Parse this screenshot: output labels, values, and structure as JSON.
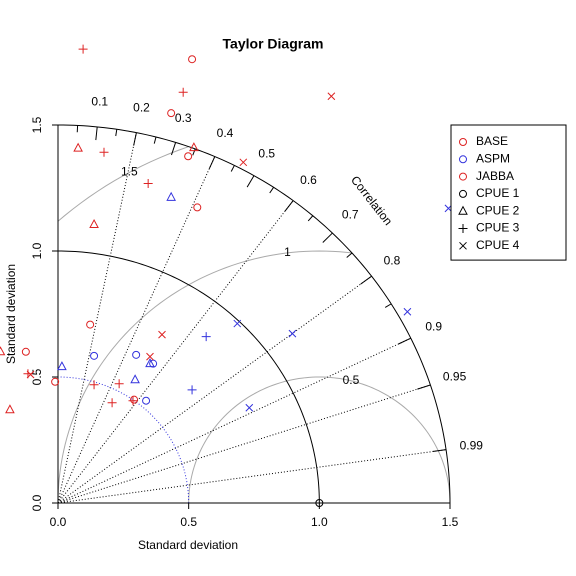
{
  "chart_data": {
    "type": "taylor",
    "title": "Taylor Diagram",
    "xlabel": "Standard deviation",
    "ylabel": "Standard deviation",
    "xlim": [
      0,
      1.5
    ],
    "ylim": [
      0,
      1.5
    ],
    "xticks": [
      {
        "value": 0,
        "label": "0.0"
      },
      {
        "value": 0.5,
        "label": "0.5"
      },
      {
        "value": 1,
        "label": "1.0"
      },
      {
        "value": 1.5,
        "label": "1.5"
      }
    ],
    "yticks": [
      {
        "value": 0,
        "label": "0.0"
      },
      {
        "value": 0.5,
        "label": "0.5"
      },
      {
        "value": 1,
        "label": "1.0"
      },
      {
        "value": 1.5,
        "label": "1.5"
      }
    ],
    "correlation_label": "Correlation",
    "correlation_ticks": [
      0.1,
      0.2,
      0.3,
      0.4,
      0.5,
      0.6,
      0.7,
      0.8,
      0.9,
      0.95,
      0.99
    ],
    "correlation_minor_ticks": [
      0.05,
      0.15,
      0.25,
      0.35,
      0.45,
      0.55,
      0.65,
      0.75,
      0.85
    ],
    "correlation_lines": [
      0.2,
      0.4,
      0.6,
      0.8,
      0.9,
      0.95,
      0.99
    ],
    "rms_levels": [
      0.5,
      1,
      1.5
    ],
    "reference_sd": 1,
    "sd_arc": 1,
    "dotted_sd_arc": {
      "sd": 0.5,
      "color": "#3333dd"
    },
    "markers": [
      {
        "name": "CPUE 1",
        "marker": "circle"
      },
      {
        "name": "CPUE 2",
        "marker": "triangle"
      },
      {
        "name": "CPUE 3",
        "marker": "plus"
      },
      {
        "name": "CPUE 4",
        "marker": "cross"
      }
    ],
    "series": [
      {
        "name": "BASE",
        "color": "#dd2222",
        "x": [
          0.513,
          0.433,
          0.498,
          0.533,
          0.077,
          0.138,
          0.52,
          0.096,
          0.479,
          0.176,
          0.345,
          1.046,
          0.709
        ],
        "y": [
          1.761,
          1.547,
          1.376,
          1.173,
          1.408,
          1.105,
          1.41,
          1.801,
          1.63,
          1.392,
          1.268,
          1.614,
          1.352
        ],
        "markers": [
          "circle",
          "circle",
          "circle",
          "circle",
          "triangle",
          "triangle",
          "triangle",
          "plus",
          "plus",
          "plus",
          "plus",
          "cross",
          "cross"
        ]
      },
      {
        "name": "ASPM",
        "color": "#3333dd",
        "x": [
          0.138,
          0.299,
          0.364,
          0.337,
          0.015,
          0.433,
          0.295,
          0.352,
          0.567,
          0.513,
          1.494,
          0.686,
          0.897,
          1.337,
          0.732
        ],
        "y": [
          0.584,
          0.588,
          0.553,
          0.406,
          0.541,
          1.213,
          0.489,
          0.553,
          0.66,
          0.449,
          1.169,
          0.712,
          0.672,
          0.759,
          0.378
        ],
        "markers": [
          "circle",
          "circle",
          "circle",
          "circle",
          "triangle",
          "triangle",
          "triangle",
          "triangle",
          "plus",
          "plus",
          "cross",
          "cross",
          "cross",
          "cross",
          "cross"
        ]
      },
      {
        "name": "JABBA",
        "color": "#dd2222",
        "x": [
          0.123,
          -0.123,
          -0.011,
          0.291,
          -0.184,
          -0.22,
          0.138,
          0.234,
          0.207,
          0.287,
          -0.115,
          0.398,
          0.352,
          -0.105
        ],
        "y": [
          0.708,
          0.6,
          0.481,
          0.41,
          0.37,
          0.6,
          0.469,
          0.473,
          0.398,
          0.406,
          0.513,
          0.668,
          0.581,
          0.51
        ],
        "markers": [
          "circle",
          "circle",
          "circle",
          "circle",
          "triangle",
          "triangle",
          "plus",
          "plus",
          "plus",
          "plus",
          "plus",
          "cross",
          "cross",
          "cross"
        ]
      }
    ]
  }
}
